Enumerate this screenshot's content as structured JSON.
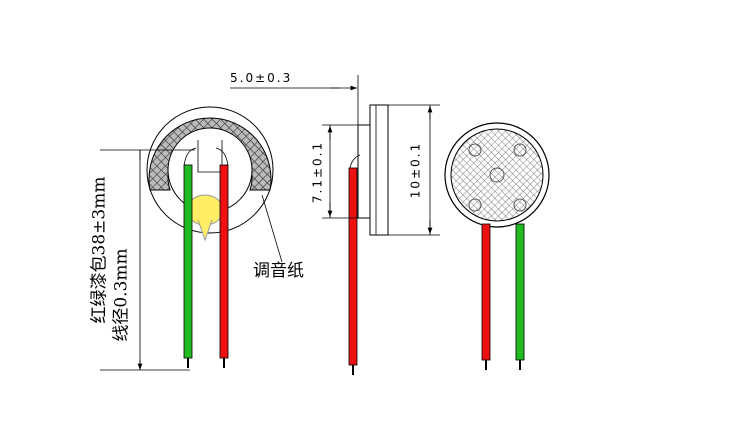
{
  "dimensions": {
    "depth": "5.0±0.3",
    "plate": "7.1±0.1",
    "diameter": "10±0.1"
  },
  "labels": {
    "tuning_paper": "调音纸",
    "wire_spec": "红绿漆包38±3mm",
    "wire_gauge": "线径0.3mm"
  }
}
